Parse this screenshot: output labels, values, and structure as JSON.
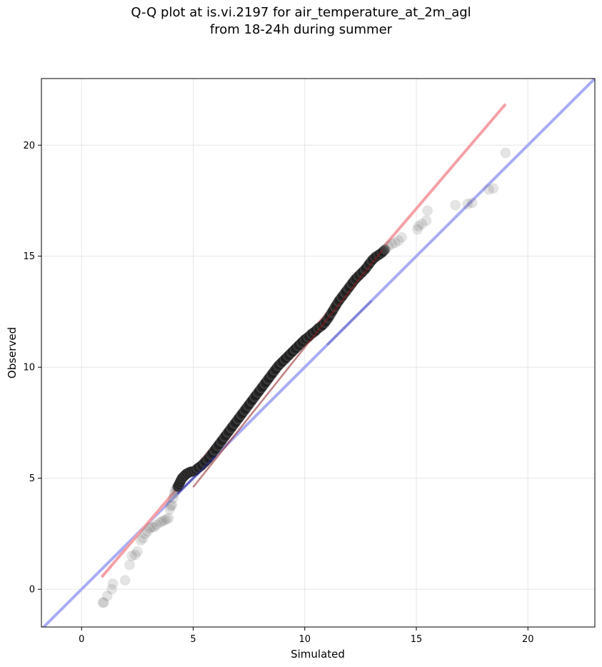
{
  "chart_data": {
    "type": "scatter",
    "title": "Q-Q plot at is.vi.2197 for air_temperature_at_2m_agl",
    "subtitle": "from 18-24h during summer",
    "xlabel": "Simulated",
    "ylabel": "Observed",
    "xlim": [
      -1.8,
      23.0
    ],
    "ylim": [
      -1.7,
      23.0
    ],
    "xticks": [
      0,
      5,
      10,
      15,
      20
    ],
    "yticks": [
      0,
      5,
      10,
      15,
      20
    ],
    "grid": true,
    "colors": {
      "points": "#555555",
      "fit_line": "#f4a0a6",
      "identity_line": "#a8acf4",
      "fit_line_dark": "#8b1a1a",
      "identity_dark": "#2a2a90"
    },
    "fit_line": {
      "x": [
        0.9,
        19.0
      ],
      "y": [
        0.55,
        21.85
      ]
    },
    "identity_line": {
      "x": [
        -1.8,
        23.0
      ],
      "y": [
        -1.8,
        23.0
      ]
    },
    "series": [
      {
        "x": [
          0.95,
          1.0,
          1.15,
          1.35,
          1.4,
          1.95,
          2.15,
          2.25,
          2.4,
          2.5,
          2.65,
          2.75,
          2.85,
          2.95,
          3.05,
          3.15,
          3.25,
          3.35,
          3.5,
          3.6,
          3.7,
          3.8,
          3.9,
          3.95,
          4.0,
          4.05,
          4.1,
          4.15,
          4.2,
          4.25,
          4.3,
          4.35,
          4.4,
          4.45,
          4.5,
          4.55,
          4.6,
          4.65,
          4.7,
          4.8,
          4.9,
          5.0,
          5.1,
          5.2,
          5.35,
          5.5,
          5.65,
          5.8,
          5.95,
          6.1,
          6.25,
          6.4,
          6.55,
          6.7,
          6.85,
          7.0,
          7.15,
          7.3,
          7.45,
          7.6,
          7.75,
          7.9,
          8.05,
          8.2,
          8.35,
          8.5,
          8.65,
          8.8,
          8.95,
          9.1,
          9.25,
          9.4,
          9.55,
          9.7,
          9.85,
          10.0,
          10.15,
          10.3,
          10.45,
          10.6,
          10.75,
          10.9,
          11.05,
          11.2,
          11.35,
          11.5,
          11.65,
          11.8,
          11.95,
          12.1,
          12.25,
          12.4,
          12.55,
          12.7,
          12.85,
          13.0,
          13.15,
          13.3,
          13.45,
          13.6,
          13.75,
          13.9,
          14.05,
          14.2,
          14.35,
          15.05,
          15.1,
          15.25,
          15.45,
          15.5,
          16.75,
          17.3,
          17.5,
          18.25,
          18.45,
          19.0
        ],
        "y": [
          -0.6,
          -0.6,
          -0.3,
          0.0,
          0.25,
          0.4,
          1.1,
          1.5,
          1.55,
          1.7,
          2.2,
          2.3,
          2.5,
          2.6,
          2.75,
          2.8,
          2.8,
          2.9,
          3.0,
          3.05,
          3.1,
          3.15,
          3.2,
          3.6,
          3.75,
          3.8,
          4.1,
          4.3,
          4.45,
          4.55,
          4.6,
          4.7,
          4.8,
          4.9,
          5.0,
          5.05,
          5.1,
          5.15,
          5.2,
          5.25,
          5.3,
          5.3,
          5.35,
          5.45,
          5.55,
          5.7,
          5.85,
          6.05,
          6.25,
          6.45,
          6.65,
          6.85,
          7.05,
          7.25,
          7.45,
          7.65,
          7.85,
          8.05,
          8.25,
          8.45,
          8.65,
          8.85,
          9.05,
          9.25,
          9.45,
          9.65,
          9.85,
          10.05,
          10.2,
          10.35,
          10.5,
          10.65,
          10.8,
          10.95,
          11.1,
          11.25,
          11.35,
          11.5,
          11.6,
          11.75,
          11.85,
          12.0,
          12.2,
          12.45,
          12.7,
          12.95,
          13.15,
          13.35,
          13.55,
          13.75,
          13.95,
          14.1,
          14.25,
          14.4,
          14.6,
          14.8,
          14.95,
          15.05,
          15.15,
          15.3,
          15.45,
          15.55,
          15.6,
          15.7,
          15.85,
          16.2,
          16.35,
          16.45,
          16.6,
          17.05,
          17.3,
          17.35,
          17.4,
          18.0,
          18.05,
          19.65
        ]
      }
    ]
  }
}
